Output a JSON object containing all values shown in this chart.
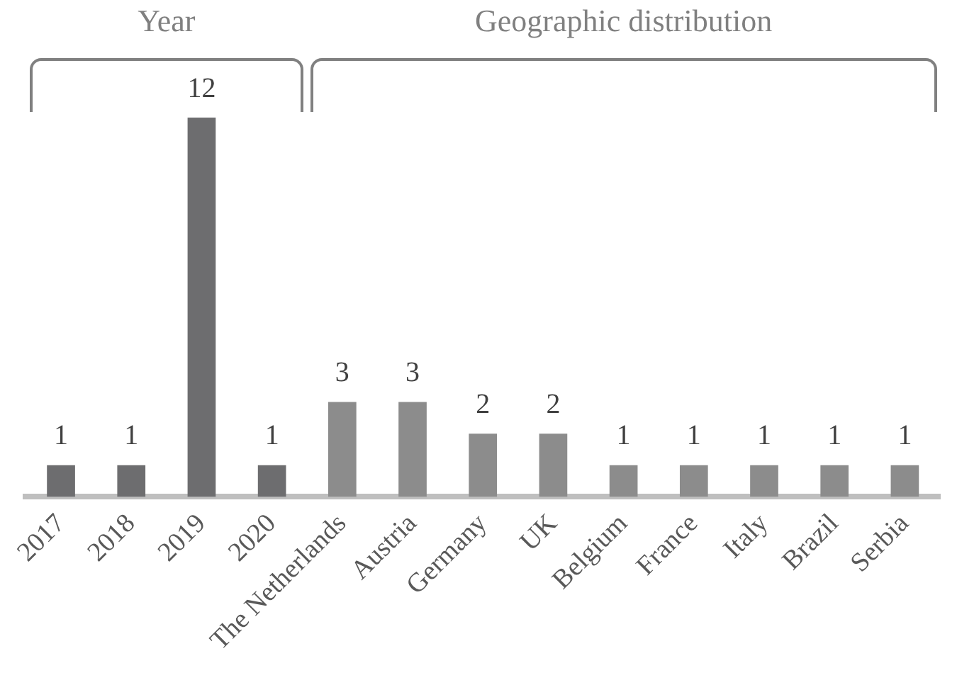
{
  "chart_data": {
    "type": "bar",
    "categories": [
      "2017",
      "2018",
      "2019",
      "2020",
      "The Netherlands",
      "Austria",
      "Germany",
      "UK",
      "Belgium",
      "France",
      "Italy",
      "Brazil",
      "Serbia"
    ],
    "values": [
      1,
      1,
      12,
      1,
      3,
      3,
      2,
      2,
      1,
      1,
      1,
      1,
      1
    ],
    "colors": [
      "#6d6d6f",
      "#6d6d6f",
      "#6d6d6f",
      "#6d6d6f",
      "#8c8c8c",
      "#8c8c8c",
      "#8c8c8c",
      "#8c8c8c",
      "#8c8c8c",
      "#8c8c8c",
      "#8c8c8c",
      "#8c8c8c",
      "#8c8c8c"
    ],
    "data_labels": true,
    "legend": false,
    "annotations": [
      "Year",
      "Geographic distribution"
    ]
  }
}
